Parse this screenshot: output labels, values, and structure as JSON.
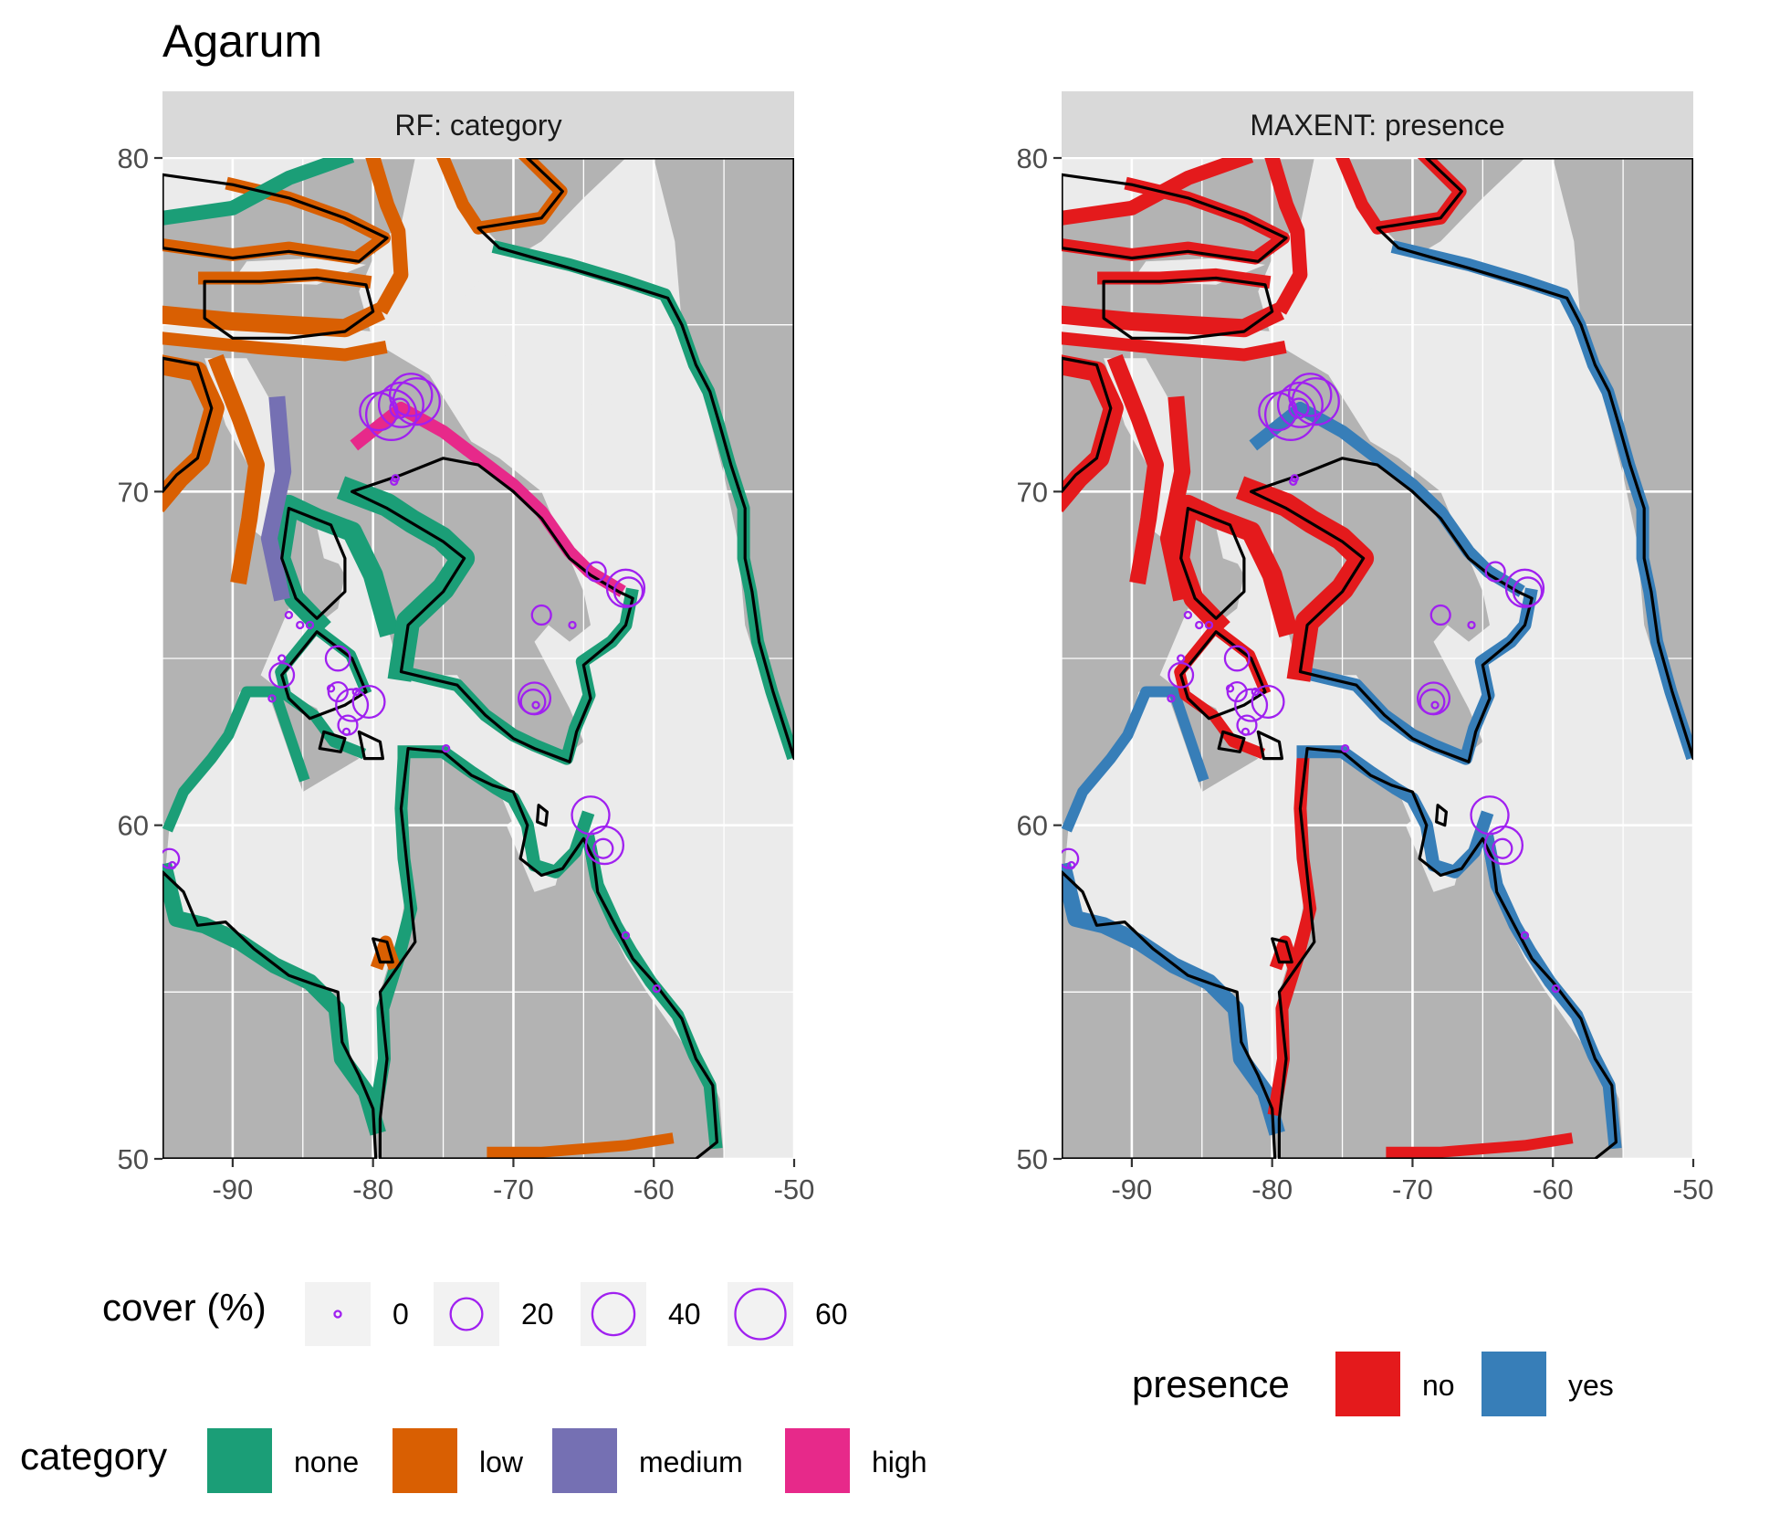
{
  "title": "Agarum",
  "colors": {
    "none": "#1b9e77",
    "low": "#d95f02",
    "medium": "#7570b3",
    "high": "#e7298a",
    "no": "#e41a1c",
    "yes": "#377eb8",
    "land": "#b3b3b3",
    "sea": "#ebebeb",
    "strip": "#d9d9d9",
    "circle": "#a020f0"
  },
  "panels": [
    {
      "strip_label": "RF: category",
      "style": "category"
    },
    {
      "strip_label": "MAXENT: presence",
      "style": "presence"
    }
  ],
  "chart_data": {
    "type": "map",
    "xlim": [
      -95,
      -50
    ],
    "ylim": [
      50,
      80
    ],
    "x_ticks": [
      "-90",
      "-80",
      "-70",
      "-60",
      "-50"
    ],
    "y_ticks": [
      "50",
      "60",
      "70",
      "80"
    ],
    "grid": true,
    "cover_points": [
      {
        "lon": -94.5,
        "lat": 59.0,
        "cover": 5
      },
      {
        "lon": -94.3,
        "lat": 58.8,
        "cover": 0
      },
      {
        "lon": -86.5,
        "lat": 64.5,
        "cover": 10
      },
      {
        "lon": -87.2,
        "lat": 63.8,
        "cover": 0
      },
      {
        "lon": -86.5,
        "lat": 65.0,
        "cover": 0
      },
      {
        "lon": -86.0,
        "lat": 66.3,
        "cover": 0
      },
      {
        "lon": -85.2,
        "lat": 66.0,
        "cover": 0
      },
      {
        "lon": -84.5,
        "lat": 66.0,
        "cover": 0
      },
      {
        "lon": -82.5,
        "lat": 65.0,
        "cover": 10
      },
      {
        "lon": -83.0,
        "lat": 64.1,
        "cover": 0
      },
      {
        "lon": -82.5,
        "lat": 64.0,
        "cover": 5
      },
      {
        "lon": -81.5,
        "lat": 63.6,
        "cover": 20
      },
      {
        "lon": -80.3,
        "lat": 63.7,
        "cover": 20
      },
      {
        "lon": -81.2,
        "lat": 64.0,
        "cover": 0
      },
      {
        "lon": -81.8,
        "lat": 63.0,
        "cover": 5
      },
      {
        "lon": -81.9,
        "lat": 62.8,
        "cover": 0
      },
      {
        "lon": -78.5,
        "lat": 70.3,
        "cover": 0
      },
      {
        "lon": -78.4,
        "lat": 70.4,
        "cover": 0
      },
      {
        "lon": -79.6,
        "lat": 72.4,
        "cover": 30
      },
      {
        "lon": -78.7,
        "lat": 72.3,
        "cover": 60
      },
      {
        "lon": -78.0,
        "lat": 72.6,
        "cover": 45
      },
      {
        "lon": -77.3,
        "lat": 72.9,
        "cover": 40
      },
      {
        "lon": -76.9,
        "lat": 72.7,
        "cover": 50
      },
      {
        "lon": -78.1,
        "lat": 72.5,
        "cover": 5
      },
      {
        "lon": -64.1,
        "lat": 67.6,
        "cover": 5
      },
      {
        "lon": -62.0,
        "lat": 67.1,
        "cover": 30
      },
      {
        "lon": -61.8,
        "lat": 67.0,
        "cover": 15
      },
      {
        "lon": -68.0,
        "lat": 66.3,
        "cover": 5
      },
      {
        "lon": -65.8,
        "lat": 66.0,
        "cover": 0
      },
      {
        "lon": -68.5,
        "lat": 63.8,
        "cover": 20
      },
      {
        "lon": -68.6,
        "lat": 63.7,
        "cover": 10
      },
      {
        "lon": -68.4,
        "lat": 63.6,
        "cover": 0
      },
      {
        "lon": -74.8,
        "lat": 62.3,
        "cover": 0
      },
      {
        "lon": -64.5,
        "lat": 60.3,
        "cover": 30
      },
      {
        "lon": -63.5,
        "lat": 59.4,
        "cover": 30
      },
      {
        "lon": -63.6,
        "lat": 59.3,
        "cover": 5
      },
      {
        "lon": -62.0,
        "lat": 56.7,
        "cover": 0
      },
      {
        "lon": -59.8,
        "lat": 55.1,
        "cover": 0
      }
    ]
  },
  "legends": {
    "cover": {
      "title": "cover (%)",
      "items": [
        {
          "label": "0",
          "value": 0
        },
        {
          "label": "20",
          "value": 20
        },
        {
          "label": "40",
          "value": 40
        },
        {
          "label": "60",
          "value": 60
        }
      ]
    },
    "category": {
      "title": "category",
      "items": [
        {
          "label": "none",
          "color": "#1b9e77"
        },
        {
          "label": "low",
          "color": "#d95f02"
        },
        {
          "label": "medium",
          "color": "#7570b3"
        },
        {
          "label": "high",
          "color": "#e7298a"
        }
      ]
    },
    "presence": {
      "title": "presence",
      "items": [
        {
          "label": "no",
          "color": "#e41a1c"
        },
        {
          "label": "yes",
          "color": "#377eb8"
        }
      ]
    }
  }
}
